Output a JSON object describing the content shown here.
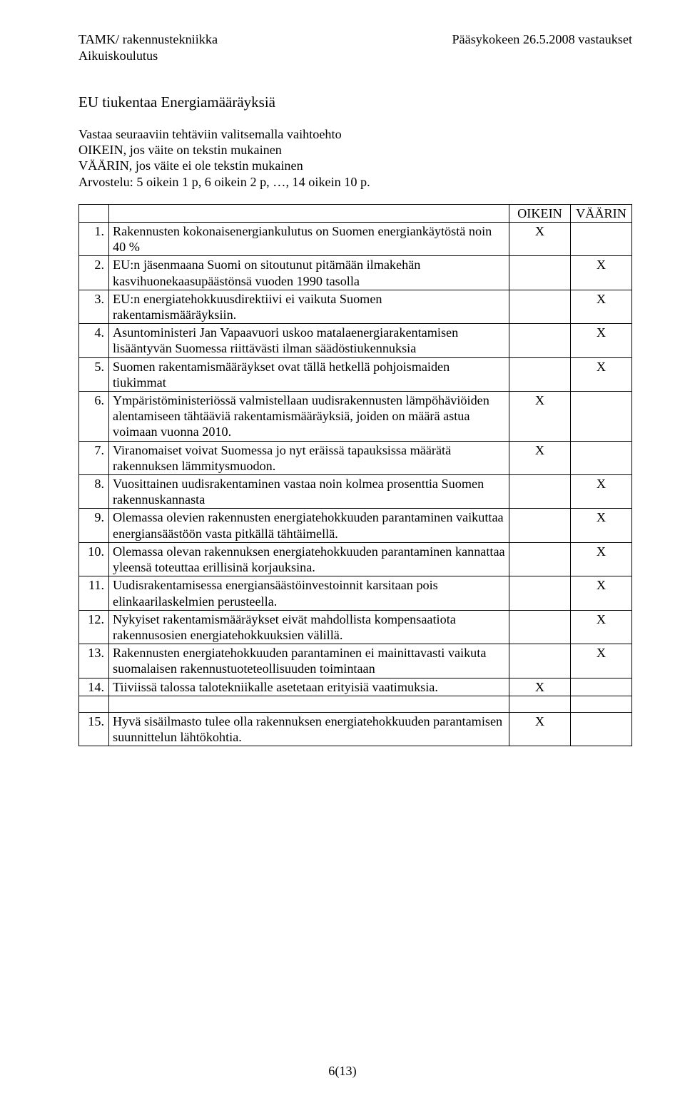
{
  "header": {
    "left_top": "TAMK/ rakennustekniikka",
    "left_sub": "Aikuiskoulutus",
    "right_top": "Pääsykokeen 26.5.2008 vastaukset"
  },
  "title": "EU tiukentaa Energiamääräyksiä",
  "intro": {
    "l1": "Vastaa seuraaviin tehtäviin valitsemalla vaihtoehto",
    "l2": "OIKEIN, jos väite on tekstin mukainen",
    "l3": "VÄÄRIN, jos väite ei ole tekstin mukainen",
    "l4": "Arvostelu: 5 oikein 1 p, 6 oikein 2 p, …, 14 oikein 10 p."
  },
  "table": {
    "col_oikein": "OIKEIN",
    "col_vaarin": "VÄÄRIN",
    "mark": "X",
    "rows": [
      {
        "n": "1.",
        "text": "Rakennusten kokonaisenergiankulutus on Suomen energiankäytöstä noin 40 %",
        "oikein": true,
        "vaarin": false
      },
      {
        "n": "2.",
        "text": "EU:n jäsenmaana Suomi on sitoutunut pitämään ilmakehän kasvihuonekaasupäästönsä vuoden 1990 tasolla",
        "oikein": false,
        "vaarin": true
      },
      {
        "n": "3.",
        "text": "EU:n energiatehokkuusdirektiivi ei vaikuta Suomen rakentamismääräyksiin.",
        "oikein": false,
        "vaarin": true
      },
      {
        "n": "4.",
        "text": "Asuntoministeri Jan Vapaavuori uskoo matalaenergiarakentamisen lisääntyvän Suomessa riittävästi ilman säädöstiukennuksia",
        "oikein": false,
        "vaarin": true
      },
      {
        "n": "5.",
        "text": "Suomen rakentamismääräykset ovat tällä hetkellä pohjoismaiden tiukimmat",
        "oikein": false,
        "vaarin": true
      },
      {
        "n": "6.",
        "text": "Ympäristöministeriössä valmistellaan uudisrakennusten lämpöhäviöiden alentamiseen tähtääviä rakentamismääräyksiä, joiden on määrä astua voimaan vuonna 2010.",
        "oikein": true,
        "vaarin": false
      },
      {
        "n": "7.",
        "text": "Viranomaiset voivat Suomessa jo nyt eräissä tapauksissa määrätä rakennuksen lämmitysmuodon.",
        "oikein": true,
        "vaarin": false
      },
      {
        "n": "8.",
        "text": "Vuosittainen uudisrakentaminen vastaa noin kolmea prosenttia Suomen rakennuskannasta",
        "oikein": false,
        "vaarin": true
      },
      {
        "n": "9.",
        "text": "Olemassa olevien rakennusten energiatehokkuuden parantaminen vaikuttaa energiansäästöön vasta pitkällä tähtäimellä.",
        "oikein": false,
        "vaarin": true
      },
      {
        "n": "10.",
        "text": "Olemassa olevan rakennuksen energiatehokkuuden parantaminen kannattaa yleensä toteuttaa erillisinä korjauksina.",
        "oikein": false,
        "vaarin": true
      },
      {
        "n": "11.",
        "text": "Uudisrakentamisessa energiansäästöinvestoinnit karsitaan pois elinkaarilaskelmien perusteella.",
        "oikein": false,
        "vaarin": true
      },
      {
        "n": "12.",
        "text": "Nykyiset rakentamismääräykset eivät mahdollista kompensaatiota rakennusosien energiatehokkuuksien välillä.",
        "oikein": false,
        "vaarin": true
      },
      {
        "n": "13.",
        "text": "Rakennusten energiatehokkuuden parantaminen ei mainittavasti vaikuta suomalaisen rakennustuoteteollisuuden toimintaan",
        "oikein": false,
        "vaarin": true
      },
      {
        "n": "14.",
        "text": "Tiiviissä talossa talotekniikalle asetetaan erityisiä vaatimuksia.",
        "oikein": true,
        "vaarin": false
      }
    ],
    "row15": {
      "n": "15.",
      "text": "Hyvä sisäilmasto tulee olla rakennuksen energiatehokkuuden parantamisen suunnittelun lähtökohtia.",
      "oikein": true,
      "vaarin": false
    }
  },
  "footer": "6(13)"
}
